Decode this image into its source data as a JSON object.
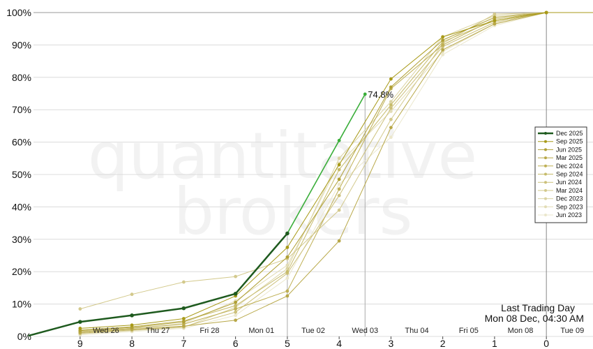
{
  "chart_data": {
    "type": "line",
    "title": "",
    "xlabel": "",
    "ylabel": "",
    "ylim": [
      0,
      100
    ],
    "y_ticks": [
      "0%",
      "10%",
      "20%",
      "30%",
      "40%",
      "50%",
      "60%",
      "70%",
      "80%",
      "90%",
      "100%"
    ],
    "x_ticks": [
      "9",
      "8",
      "7",
      "6",
      "5",
      "4",
      "3",
      "2",
      "1",
      "0"
    ],
    "day_labels": [
      "Wed 26",
      "Thu 27",
      "Fri 28",
      "Mon 01",
      "Tue 02",
      "Wed 03",
      "Thu 04",
      "Fri 05",
      "Mon 08",
      "Tue 09"
    ],
    "x_range": [
      9.9,
      -0.9
    ],
    "watermark": [
      "quantitative",
      "brokers"
    ],
    "grid": true,
    "legend_position": "right",
    "current_annotation": "74.8%",
    "last_trading_day_title": "Last Trading Day",
    "last_trading_day_value": "Mon 08 Dec, 04:30 AM",
    "series": [
      {
        "name": "Dec 2025",
        "color": "#1e5a1e",
        "x": [
          10,
          9,
          8,
          7,
          6,
          5
        ],
        "values": [
          0.2,
          4.5,
          6.5,
          8.7,
          13.2,
          31.8
        ],
        "highlight": true
      },
      {
        "name": "Dec 2025",
        "color": "#3aae3a",
        "x": [
          5,
          4,
          3.5
        ],
        "values": [
          31.8,
          60.5,
          74.8
        ],
        "continuation": true
      },
      {
        "name": "Sep 2025",
        "color": "#a89a18",
        "x": [
          9,
          8,
          7,
          6,
          5,
          4,
          3,
          2,
          1,
          0
        ],
        "values": [
          2.5,
          3.5,
          5.5,
          12.5,
          27.5,
          53,
          79.5,
          92.5,
          97.5,
          100
        ]
      },
      {
        "name": "Jun 2025",
        "color": "#b0a035",
        "x": [
          9,
          8,
          7,
          6,
          5,
          4,
          3,
          2,
          1,
          0
        ],
        "values": [
          1.8,
          2.8,
          4.5,
          10.5,
          24.5,
          48.5,
          77,
          91.5,
          98.5,
          100
        ]
      },
      {
        "name": "Mar 2025",
        "color": "#b8a848",
        "x": [
          9,
          8,
          7,
          6,
          5,
          4,
          3,
          2,
          1,
          0
        ],
        "values": [
          1.2,
          2.2,
          3.2,
          5,
          12.5,
          29.5,
          64.5,
          88.5,
          96.5,
          100
        ]
      },
      {
        "name": "Dec 2024",
        "color": "#bfb055",
        "x": [
          9,
          8,
          7,
          6,
          5,
          4,
          3,
          2,
          1,
          0
        ],
        "values": [
          1.5,
          2.5,
          3.8,
          8.5,
          14,
          45.5,
          76.5,
          90,
          98,
          100
        ]
      },
      {
        "name": "Sep 2024",
        "color": "#c6bb6a",
        "x": [
          9,
          8,
          7,
          6,
          5,
          4,
          3,
          2,
          1,
          0
        ],
        "values": [
          2,
          3,
          4.8,
          9.5,
          20,
          51.5,
          71.5,
          91,
          97.5,
          100
        ]
      },
      {
        "name": "Jun 2024",
        "color": "#ccc07a",
        "x": [
          9,
          8,
          7,
          6,
          5,
          4,
          3,
          2,
          1,
          0
        ],
        "values": [
          1,
          2,
          3,
          7.5,
          19.5,
          43.5,
          70.5,
          89.5,
          97,
          100
        ]
      },
      {
        "name": "Mar 2024",
        "color": "#d3c98c",
        "x": [
          9,
          8,
          7,
          6,
          5,
          4,
          3,
          2,
          1,
          0
        ],
        "values": [
          8.5,
          13,
          16.8,
          18.5,
          24,
          39,
          67,
          90.5,
          99.5,
          100
        ]
      },
      {
        "name": "Dec 2023",
        "color": "#dad3a2",
        "x": [
          9,
          8,
          7,
          6,
          5,
          4,
          3,
          2,
          1,
          0
        ],
        "values": [
          0.8,
          1.8,
          2.8,
          9,
          21,
          55,
          72.5,
          92.5,
          99,
          100
        ]
      },
      {
        "name": "Sep 2023",
        "color": "#e2dcb5",
        "x": [
          9,
          8,
          7,
          6,
          5,
          4,
          3,
          2,
          1,
          0
        ],
        "values": [
          1.5,
          2.5,
          4,
          11,
          22,
          53.5,
          69.5,
          88,
          96.5,
          100
        ]
      },
      {
        "name": "Jun 2023",
        "color": "#ebe7cc",
        "x": [
          9,
          8,
          7,
          6,
          5,
          4,
          3,
          2,
          1,
          0
        ],
        "values": [
          0.5,
          1.5,
          2.5,
          6.5,
          18,
          47,
          61.5,
          87,
          96,
          100
        ]
      }
    ]
  }
}
